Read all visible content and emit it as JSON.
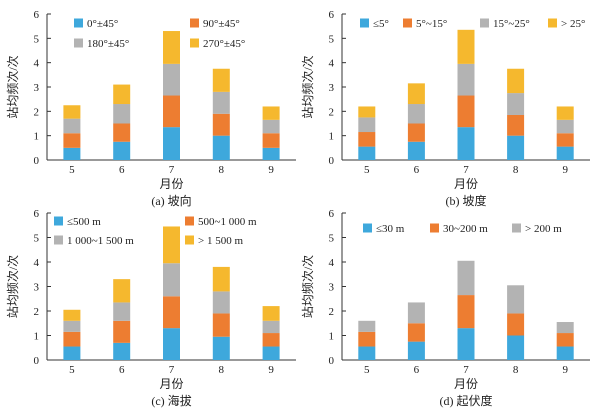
{
  "chart_data": [
    {
      "type": "bar",
      "stacked": true,
      "ylabel": "站均频次/次",
      "xlabel": "月份",
      "caption": "(a) 坡向",
      "categories": [
        "5",
        "6",
        "7",
        "8",
        "9"
      ],
      "ylim": [
        0,
        6
      ],
      "yticks": [
        "0",
        "1",
        "2",
        "3",
        "4",
        "5",
        "6"
      ],
      "legend_position": "top",
      "series": [
        {
          "name": "0°±45°",
          "color": "#3ea8dc",
          "values": [
            0.5,
            0.75,
            1.35,
            1.0,
            0.5
          ]
        },
        {
          "name": "90°±45°",
          "color": "#ed7d31",
          "values": [
            0.6,
            0.75,
            1.3,
            0.9,
            0.6
          ]
        },
        {
          "name": "180°±45°",
          "color": "#b3b3b3",
          "values": [
            0.6,
            0.8,
            1.3,
            0.9,
            0.55
          ]
        },
        {
          "name": "270°±45°",
          "color": "#f5b82e",
          "values": [
            0.55,
            0.8,
            1.35,
            0.95,
            0.55
          ]
        }
      ]
    },
    {
      "type": "bar",
      "stacked": true,
      "ylabel": "站均频次/次",
      "xlabel": "月份",
      "caption": "(b) 坡度",
      "categories": [
        "5",
        "6",
        "7",
        "8",
        "9"
      ],
      "ylim": [
        0,
        6
      ],
      "yticks": [
        "0",
        "1",
        "2",
        "3",
        "4",
        "5",
        "6"
      ],
      "legend_position": "top",
      "series": [
        {
          "name": "≤5°",
          "color": "#3ea8dc",
          "values": [
            0.55,
            0.75,
            1.35,
            1.0,
            0.55
          ]
        },
        {
          "name": "5°~15°",
          "color": "#ed7d31",
          "values": [
            0.6,
            0.75,
            1.3,
            0.85,
            0.55
          ]
        },
        {
          "name": "15°~25°",
          "color": "#b3b3b3",
          "values": [
            0.6,
            0.8,
            1.3,
            0.9,
            0.55
          ]
        },
        {
          "name": "> 25°",
          "color": "#f5b82e",
          "values": [
            0.45,
            0.85,
            1.4,
            1.0,
            0.55
          ]
        }
      ]
    },
    {
      "type": "bar",
      "stacked": true,
      "ylabel": "站均频次/次",
      "xlabel": "月份",
      "caption": "(c) 海拔",
      "categories": [
        "5",
        "6",
        "7",
        "8",
        "9"
      ],
      "ylim": [
        0,
        6
      ],
      "yticks": [
        "0",
        "1",
        "2",
        "3",
        "4",
        "5",
        "6"
      ],
      "legend_position": "top",
      "series": [
        {
          "name": "≤500 m",
          "color": "#3ea8dc",
          "values": [
            0.55,
            0.7,
            1.3,
            0.95,
            0.55
          ]
        },
        {
          "name": "500~1 000 m",
          "color": "#ed7d31",
          "values": [
            0.6,
            0.9,
            1.3,
            0.95,
            0.55
          ]
        },
        {
          "name": "1 000~1 500 m",
          "color": "#b3b3b3",
          "values": [
            0.45,
            0.75,
            1.35,
            0.9,
            0.5
          ]
        },
        {
          "name": "> 1 500 m",
          "color": "#f5b82e",
          "values": [
            0.45,
            0.95,
            1.5,
            1.0,
            0.6
          ]
        }
      ]
    },
    {
      "type": "bar",
      "stacked": true,
      "ylabel": "站均频次/次",
      "xlabel": "月份",
      "caption": "(d) 起伏度",
      "categories": [
        "5",
        "6",
        "7",
        "8",
        "9"
      ],
      "ylim": [
        0,
        6
      ],
      "yticks": [
        "0",
        "1",
        "2",
        "3",
        "4",
        "5",
        "6"
      ],
      "legend_position": "top",
      "series": [
        {
          "name": "≤30 m",
          "color": "#3ea8dc",
          "values": [
            0.55,
            0.75,
            1.3,
            1.0,
            0.55
          ]
        },
        {
          "name": "30~200 m",
          "color": "#ed7d31",
          "values": [
            0.6,
            0.75,
            1.35,
            0.9,
            0.55
          ]
        },
        {
          "name": "> 200 m",
          "color": "#b3b3b3",
          "values": [
            0.45,
            0.85,
            1.4,
            1.15,
            0.45
          ]
        }
      ]
    }
  ]
}
